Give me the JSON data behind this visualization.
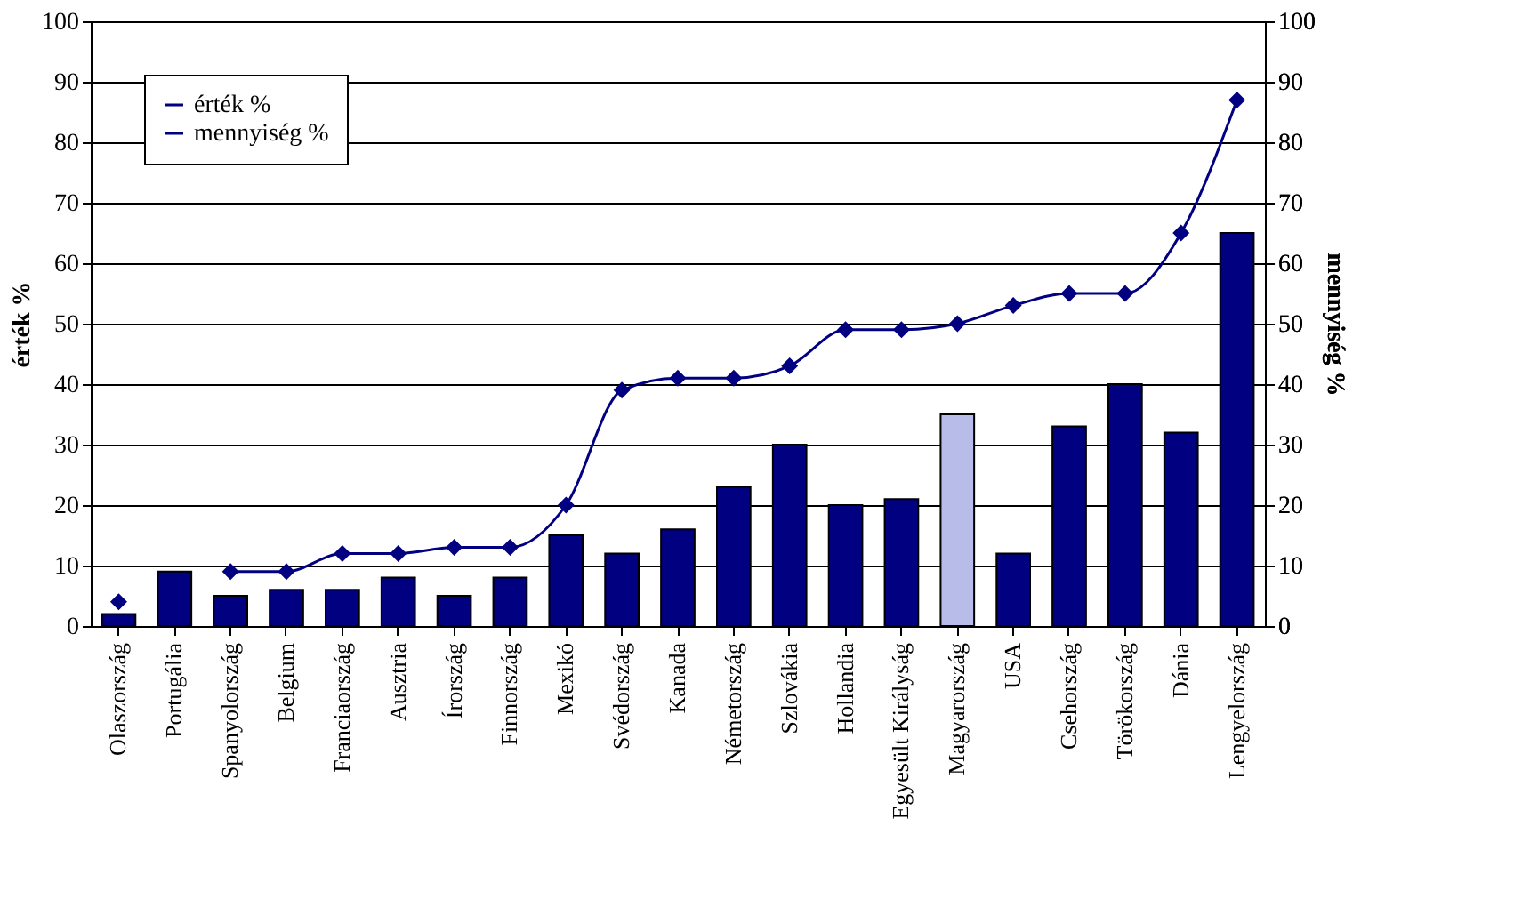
{
  "chart_data": {
    "type": "bar",
    "categories": [
      "Olaszország",
      "Portugália",
      "Spanyolország",
      "Belgium",
      "Franciaország",
      "Ausztria",
      "Írország",
      "Finnország",
      "Mexikó",
      "Svédország",
      "Kanada",
      "Németország",
      "Szlovákia",
      "Hollandia",
      "Egyesült Királyság",
      "Magyarország",
      "USA",
      "Csehország",
      "Törökország",
      "Dánia",
      "Lengyelország"
    ],
    "ylabel": "érték %",
    "y2label": "mennyiség %",
    "ylim": [
      0,
      100
    ],
    "yticks": [
      0,
      10,
      20,
      30,
      40,
      50,
      60,
      70,
      80,
      90,
      100
    ],
    "y2lim": [
      0,
      100
    ],
    "y2ticks": [
      0,
      10,
      20,
      30,
      40,
      50,
      60,
      70,
      80,
      90,
      100
    ],
    "grid": "y",
    "legend": "top left",
    "series": [
      {
        "name": "érték %",
        "color": "#000080",
        "colors": [
          "#000080",
          "#000080",
          "#000080",
          "#000080",
          "#000080",
          "#000080",
          "#000080",
          "#000080",
          "#000080",
          "#000080",
          "#000080",
          "#000080",
          "#000080",
          "#000080",
          "#000080",
          "#b8bce8",
          "#000080",
          "#000080",
          "#000080",
          "#000080",
          "#000080"
        ],
        "values": [
          2,
          9,
          5,
          6,
          6,
          8,
          5,
          8,
          15,
          12,
          16,
          23,
          30,
          20,
          21,
          35,
          12,
          33,
          40,
          32,
          65
        ]
      },
      {
        "name": "mennyiség %",
        "type": "line",
        "axis": "y2",
        "color": "#000080",
        "marker": "diamond",
        "values": [
          4,
          null,
          9,
          9,
          12,
          12,
          13,
          13,
          20,
          39,
          41,
          41,
          43,
          49,
          49,
          50,
          53,
          55,
          55,
          65,
          87
        ]
      }
    ]
  }
}
